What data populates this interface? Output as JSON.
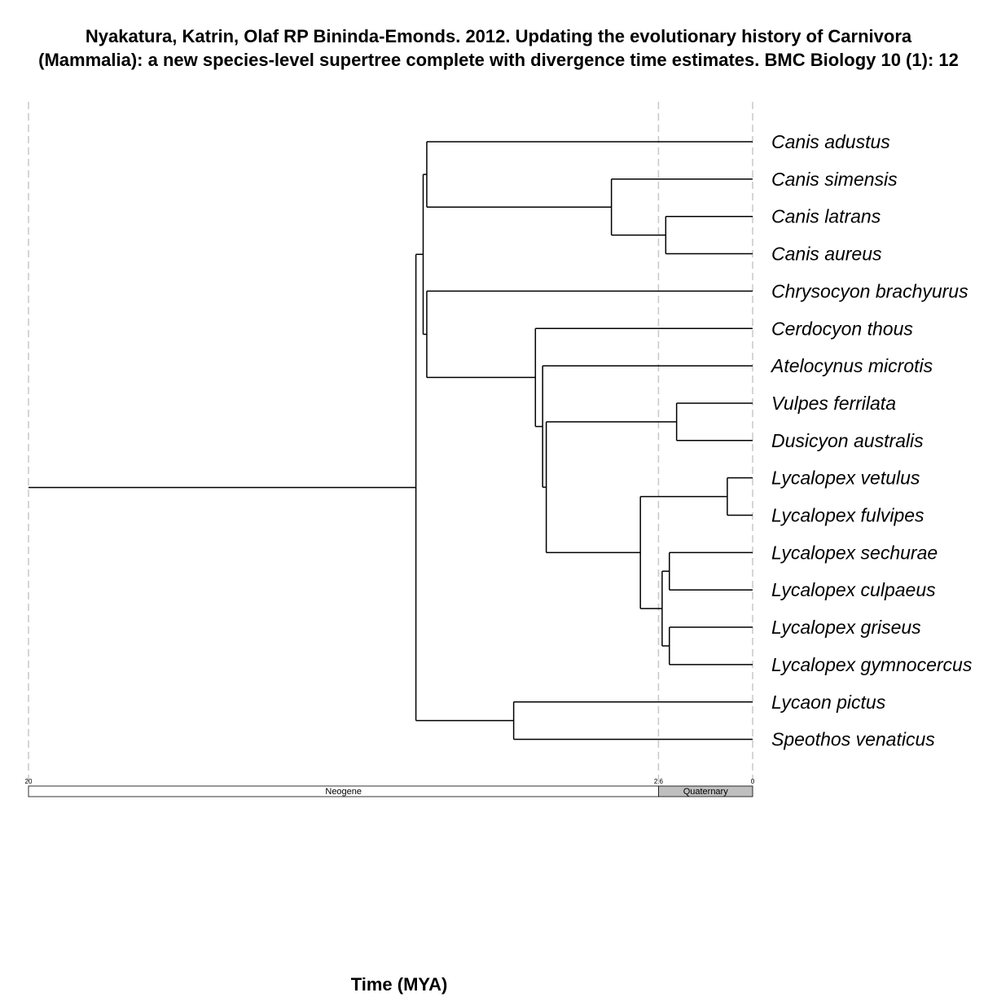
{
  "title": "Nyakatura, Katrin, Olaf RP Bininda-Emonds. 2012. Updating the evolutionary history of Carnivora (Mammalia): a new species-level supertree complete with divergence time estimates. BMC Biology 10 (1): 12",
  "axis_title": "Time (MYA)",
  "colors": {
    "branch": "#000000",
    "guide": "#c8c8c8",
    "neogene": "#ffffff",
    "quaternary": "#bfbfbf"
  },
  "chart_data": {
    "type": "tree",
    "time_axis": {
      "min_mya": 0,
      "max_mya": 20,
      "ticks": [
        "20",
        "2.6",
        "0"
      ]
    },
    "periods": [
      {
        "name": "Neogene",
        "start_mya": 20,
        "end_mya": 2.6
      },
      {
        "name": "Quaternary",
        "start_mya": 2.6,
        "end_mya": 0
      }
    ],
    "tips": [
      "Canis adustus",
      "Canis simensis",
      "Canis latrans",
      "Canis aureus",
      "Chrysocyon brachyurus",
      "Cerdocyon thous",
      "Atelocynus microtis",
      "Vulpes ferrilata",
      "Dusicyon australis",
      "Lycalopex vetulus",
      "Lycalopex fulvipes",
      "Lycalopex sechurae",
      "Lycalopex culpaeus",
      "Lycalopex griseus",
      "Lycalopex gymnocercus",
      "Lycaon pictus",
      "Speothos venaticus"
    ],
    "tree": {
      "age": 20,
      "children": [
        {
          "age": 9.3,
          "children": [
            {
              "age": 9.1,
              "children": [
                {
                  "age": 9.0,
                  "children": [
                    {
                      "tip": 0
                    },
                    {
                      "age": 3.9,
                      "children": [
                        {
                          "tip": 1
                        },
                        {
                          "age": 2.4,
                          "children": [
                            {
                              "tip": 2
                            },
                            {
                              "tip": 3
                            }
                          ]
                        }
                      ]
                    }
                  ]
                },
                {
                  "age": 9.0,
                  "children": [
                    {
                      "tip": 4
                    },
                    {
                      "age": 6.0,
                      "children": [
                        {
                          "tip": 5
                        },
                        {
                          "age": 5.8,
                          "children": [
                            {
                              "tip": 6
                            },
                            {
                              "age": 5.7,
                              "children": [
                                {
                                  "age": 2.1,
                                  "children": [
                                    {
                                      "tip": 7
                                    },
                                    {
                                      "tip": 8
                                    }
                                  ]
                                },
                                {
                                  "age": 3.1,
                                  "children": [
                                    {
                                      "age": 0.7,
                                      "children": [
                                        {
                                          "tip": 9
                                        },
                                        {
                                          "tip": 10
                                        }
                                      ]
                                    },
                                    {
                                      "age": 2.5,
                                      "children": [
                                        {
                                          "age": 2.3,
                                          "children": [
                                            {
                                              "tip": 11
                                            },
                                            {
                                              "tip": 12
                                            }
                                          ]
                                        },
                                        {
                                          "age": 2.3,
                                          "children": [
                                            {
                                              "tip": 13
                                            },
                                            {
                                              "tip": 14
                                            }
                                          ]
                                        }
                                      ]
                                    }
                                  ]
                                }
                              ]
                            }
                          ]
                        }
                      ]
                    }
                  ]
                }
              ]
            },
            {
              "age": 6.6,
              "children": [
                {
                  "tip": 15
                },
                {
                  "tip": 16
                }
              ]
            }
          ]
        }
      ]
    }
  }
}
